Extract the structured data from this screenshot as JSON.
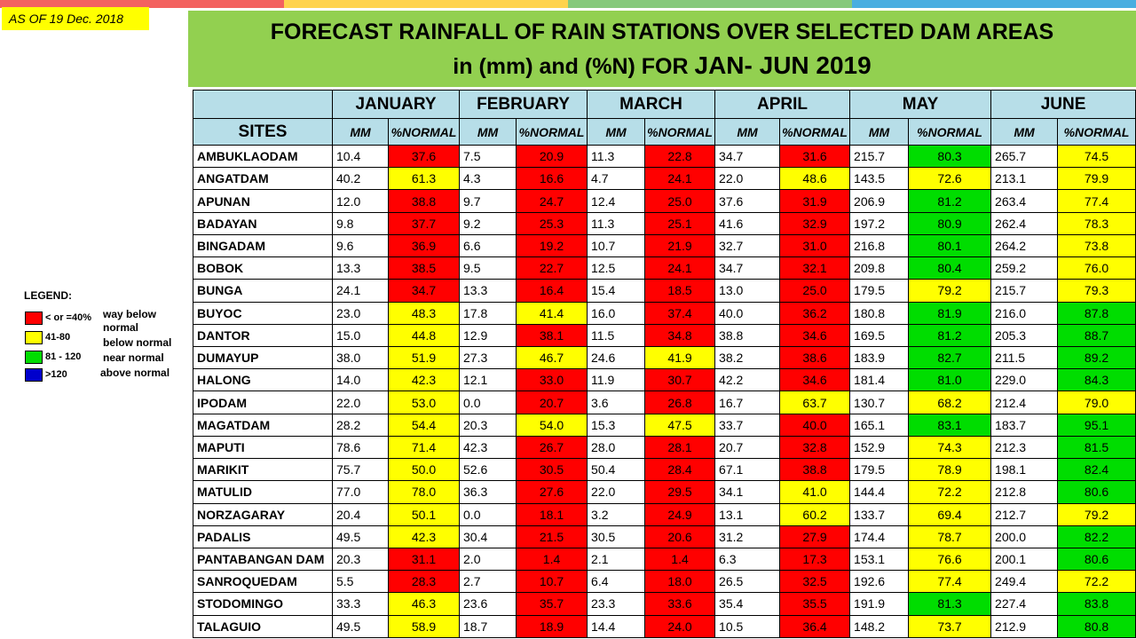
{
  "as_of": "AS OF 19 Dec. 2018",
  "title": {
    "line1": "FORECAST RAINFALL OF RAIN STATIONS OVER SELECTED DAM AREAS",
    "line2_prefix": "in (mm) and (%N) FOR ",
    "line2_big": "JAN- JUN 2019"
  },
  "colors": {
    "title_bg": "#92d050",
    "header_bg": "#b7dee8",
    "red": "#ff0000",
    "yellow": "#ffff00",
    "green": "#00dd00",
    "blue": "#0000cc",
    "top_stripe": [
      "#f3625f",
      "#ffd34d",
      "#86c97b",
      "#4aaee0"
    ]
  },
  "legend": {
    "title": "LEGEND:",
    "items": [
      {
        "range": "< or =40%",
        "color": "red",
        "desc": "way below normal"
      },
      {
        "range": "41-80",
        "color": "yellow",
        "desc": "below normal"
      },
      {
        "range": "81 - 120",
        "color": "green",
        "desc": "near normal"
      },
      {
        "range": ">120",
        "color": "blue",
        "desc": "above normal"
      }
    ]
  },
  "table": {
    "sites_header": "SITES",
    "months": [
      "JANUARY",
      "FEBRUARY",
      "MARCH",
      "APRIL",
      "MAY",
      "JUNE"
    ],
    "mm_label": "MM",
    "pct_label": "%NORMAL",
    "rows": [
      {
        "site": "AMBUKLAODAM",
        "v": [
          [
            "10.4",
            "37.6"
          ],
          [
            "7.5",
            "20.9"
          ],
          [
            "11.3",
            "22.8"
          ],
          [
            "34.7",
            "31.6"
          ],
          [
            "215.7",
            "80.3"
          ],
          [
            "265.7",
            "74.5"
          ]
        ]
      },
      {
        "site": "ANGATDAM",
        "v": [
          [
            "40.2",
            "61.3"
          ],
          [
            "4.3",
            "16.6"
          ],
          [
            "4.7",
            "24.1"
          ],
          [
            "22.0",
            "48.6"
          ],
          [
            "143.5",
            "72.6"
          ],
          [
            "213.1",
            "79.9"
          ]
        ]
      },
      {
        "site": "APUNAN",
        "v": [
          [
            "12.0",
            "38.8"
          ],
          [
            "9.7",
            "24.7"
          ],
          [
            "12.4",
            "25.0"
          ],
          [
            "37.6",
            "31.9"
          ],
          [
            "206.9",
            "81.2"
          ],
          [
            "263.4",
            "77.4"
          ]
        ]
      },
      {
        "site": "BADAYAN",
        "v": [
          [
            "9.8",
            "37.7"
          ],
          [
            "9.2",
            "25.3"
          ],
          [
            "11.3",
            "25.1"
          ],
          [
            "41.6",
            "32.9"
          ],
          [
            "197.2",
            "80.9"
          ],
          [
            "262.4",
            "78.3"
          ]
        ]
      },
      {
        "site": "BINGADAM",
        "v": [
          [
            "9.6",
            "36.9"
          ],
          [
            "6.6",
            "19.2"
          ],
          [
            "10.7",
            "21.9"
          ],
          [
            "32.7",
            "31.0"
          ],
          [
            "216.8",
            "80.1"
          ],
          [
            "264.2",
            "73.8"
          ]
        ]
      },
      {
        "site": "BOBOK",
        "v": [
          [
            "13.3",
            "38.5"
          ],
          [
            "9.5",
            "22.7"
          ],
          [
            "12.5",
            "24.1"
          ],
          [
            "34.7",
            "32.1"
          ],
          [
            "209.8",
            "80.4"
          ],
          [
            "259.2",
            "76.0"
          ]
        ]
      },
      {
        "site": "BUNGA",
        "v": [
          [
            "24.1",
            "34.7"
          ],
          [
            "13.3",
            "16.4"
          ],
          [
            "15.4",
            "18.5"
          ],
          [
            "13.0",
            "25.0"
          ],
          [
            "179.5",
            "79.2"
          ],
          [
            "215.7",
            "79.3"
          ]
        ]
      },
      {
        "site": "BUYOC",
        "v": [
          [
            "23.0",
            "48.3"
          ],
          [
            "17.8",
            "41.4"
          ],
          [
            "16.0",
            "37.4"
          ],
          [
            "40.0",
            "36.2"
          ],
          [
            "180.8",
            "81.9"
          ],
          [
            "216.0",
            "87.8"
          ]
        ]
      },
      {
        "site": "DANTOR",
        "v": [
          [
            "15.0",
            "44.8"
          ],
          [
            "12.9",
            "38.1"
          ],
          [
            "11.5",
            "34.8"
          ],
          [
            "38.8",
            "34.6"
          ],
          [
            "169.5",
            "81.2"
          ],
          [
            "205.3",
            "88.7"
          ]
        ]
      },
      {
        "site": "DUMAYUP",
        "v": [
          [
            "38.0",
            "51.9"
          ],
          [
            "27.3",
            "46.7"
          ],
          [
            "24.6",
            "41.9"
          ],
          [
            "38.2",
            "38.6"
          ],
          [
            "183.9",
            "82.7"
          ],
          [
            "211.5",
            "89.2"
          ]
        ]
      },
      {
        "site": "HALONG",
        "v": [
          [
            "14.0",
            "42.3"
          ],
          [
            "12.1",
            "33.0"
          ],
          [
            "11.9",
            "30.7"
          ],
          [
            "42.2",
            "34.6"
          ],
          [
            "181.4",
            "81.0"
          ],
          [
            "229.0",
            "84.3"
          ]
        ]
      },
      {
        "site": "IPODAM",
        "v": [
          [
            "22.0",
            "53.0"
          ],
          [
            "0.0",
            "20.7"
          ],
          [
            "3.6",
            "26.8"
          ],
          [
            "16.7",
            "63.7"
          ],
          [
            "130.7",
            "68.2"
          ],
          [
            "212.4",
            "79.0"
          ]
        ]
      },
      {
        "site": "MAGATDAM",
        "v": [
          [
            "28.2",
            "54.4"
          ],
          [
            "20.3",
            "54.0"
          ],
          [
            "15.3",
            "47.5"
          ],
          [
            "33.7",
            "40.0"
          ],
          [
            "165.1",
            "83.1"
          ],
          [
            "183.7",
            "95.1"
          ]
        ]
      },
      {
        "site": "MAPUTI",
        "v": [
          [
            "78.6",
            "71.4"
          ],
          [
            "42.3",
            "26.7"
          ],
          [
            "28.0",
            "28.1"
          ],
          [
            "20.7",
            "32.8"
          ],
          [
            "152.9",
            "74.3"
          ],
          [
            "212.3",
            "81.5"
          ]
        ]
      },
      {
        "site": "MARIKIT",
        "v": [
          [
            "75.7",
            "50.0"
          ],
          [
            "52.6",
            "30.5"
          ],
          [
            "50.4",
            "28.4"
          ],
          [
            "67.1",
            "38.8"
          ],
          [
            "179.5",
            "78.9"
          ],
          [
            "198.1",
            "82.4"
          ]
        ]
      },
      {
        "site": "MATULID",
        "v": [
          [
            "77.0",
            "78.0"
          ],
          [
            "36.3",
            "27.6"
          ],
          [
            "22.0",
            "29.5"
          ],
          [
            "34.1",
            "41.0"
          ],
          [
            "144.4",
            "72.2"
          ],
          [
            "212.8",
            "80.6"
          ]
        ]
      },
      {
        "site": "NORZAGARAY",
        "v": [
          [
            "20.4",
            "50.1"
          ],
          [
            "0.0",
            "18.1"
          ],
          [
            "3.2",
            "24.9"
          ],
          [
            "13.1",
            "60.2"
          ],
          [
            "133.7",
            "69.4"
          ],
          [
            "212.7",
            "79.2"
          ]
        ]
      },
      {
        "site": "PADALIS",
        "v": [
          [
            "49.5",
            "42.3"
          ],
          [
            "30.4",
            "21.5"
          ],
          [
            "30.5",
            "20.6"
          ],
          [
            "31.2",
            "27.9"
          ],
          [
            "174.4",
            "78.7"
          ],
          [
            "200.0",
            "82.2"
          ]
        ]
      },
      {
        "site": "PANTABANGAN DAM",
        "v": [
          [
            "20.3",
            "31.1"
          ],
          [
            "2.0",
            "1.4"
          ],
          [
            "2.1",
            "1.4"
          ],
          [
            "6.3",
            "17.3"
          ],
          [
            "153.1",
            "76.6"
          ],
          [
            "200.1",
            "80.6"
          ]
        ]
      },
      {
        "site": "SANROQUEDAM",
        "v": [
          [
            "5.5",
            "28.3"
          ],
          [
            "2.7",
            "10.7"
          ],
          [
            "6.4",
            "18.0"
          ],
          [
            "26.5",
            "32.5"
          ],
          [
            "192.6",
            "77.4"
          ],
          [
            "249.4",
            "72.2"
          ]
        ]
      },
      {
        "site": "STODOMINGO",
        "v": [
          [
            "33.3",
            "46.3"
          ],
          [
            "23.6",
            "35.7"
          ],
          [
            "23.3",
            "33.6"
          ],
          [
            "35.4",
            "35.5"
          ],
          [
            "191.9",
            "81.3"
          ],
          [
            "227.4",
            "83.8"
          ]
        ]
      },
      {
        "site": "TALAGUIO",
        "v": [
          [
            "49.5",
            "58.9"
          ],
          [
            "18.7",
            "18.9"
          ],
          [
            "14.4",
            "24.0"
          ],
          [
            "10.5",
            "36.4"
          ],
          [
            "148.2",
            "73.7"
          ],
          [
            "212.9",
            "80.8"
          ]
        ]
      }
    ]
  }
}
